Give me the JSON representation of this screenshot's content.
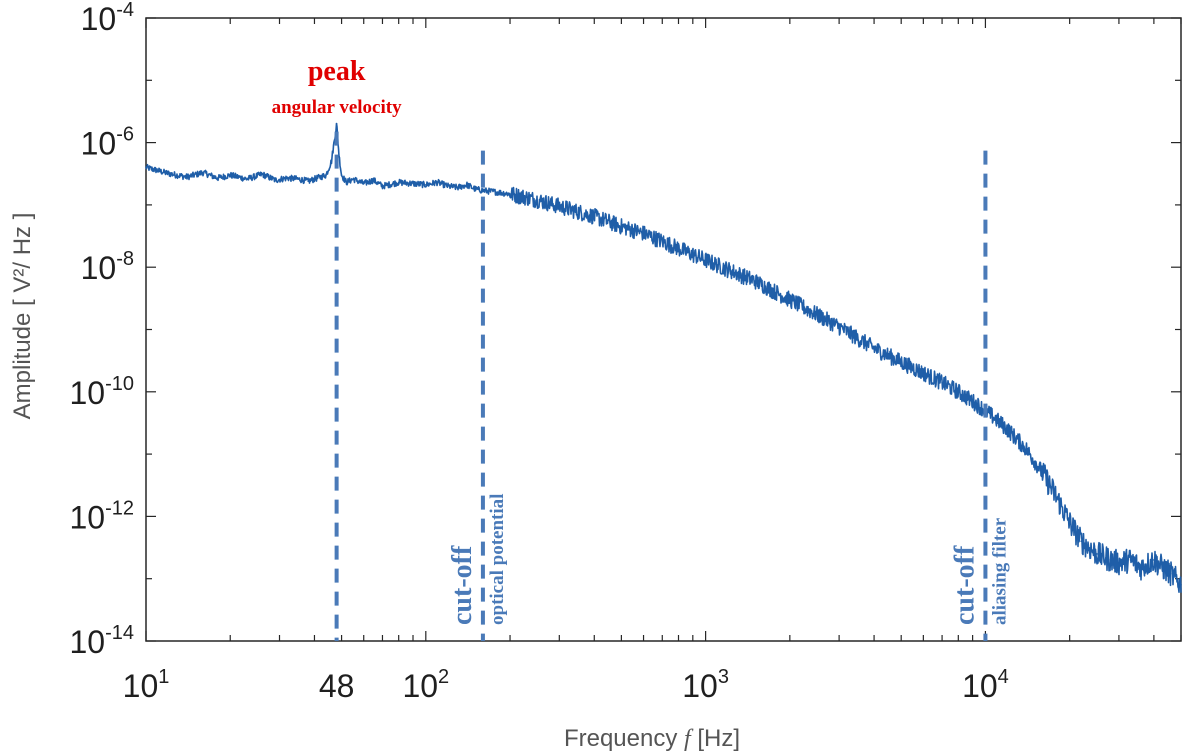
{
  "chart_data": {
    "type": "line",
    "x_scale": "log",
    "y_scale": "log",
    "xlim": [
      10,
      50000
    ],
    "ylim": [
      1e-14,
      0.0001
    ],
    "xlabel": "Frequency",
    "xlabel_var": "f",
    "xlabel_unit": "[Hz]",
    "ylabel": "Amplitude [ V²/ Hz ]",
    "x_tick_labels": [
      {
        "value": 10,
        "base": "10",
        "exp": "1"
      },
      {
        "value": 48,
        "base": "48",
        "exp": ""
      },
      {
        "value": 100,
        "base": "10",
        "exp": "2"
      },
      {
        "value": 1000,
        "base": "10",
        "exp": "3"
      },
      {
        "value": 10000,
        "base": "10",
        "exp": "4"
      }
    ],
    "y_tick_labels": [
      {
        "value": 0.0001,
        "base": "10",
        "exp": "-4"
      },
      {
        "value": 1e-06,
        "base": "10",
        "exp": "-6"
      },
      {
        "value": 1e-08,
        "base": "10",
        "exp": "-8"
      },
      {
        "value": 1e-10,
        "base": "10",
        "exp": "-10"
      },
      {
        "value": 1e-12,
        "base": "10",
        "exp": "-12"
      },
      {
        "value": 1e-14,
        "base": "10",
        "exp": "-14"
      }
    ],
    "grid": false,
    "series": [
      {
        "color": "#1f5ea8",
        "x": [
          10,
          12,
          14,
          16,
          18,
          20,
          23,
          26,
          29,
          32,
          35,
          38,
          41,
          44,
          46,
          47,
          48,
          49,
          50,
          52,
          55,
          60,
          65,
          70,
          80,
          90,
          100,
          110,
          120,
          130,
          140,
          150,
          160,
          180,
          200,
          250,
          300,
          400,
          500,
          600,
          700,
          800,
          1000,
          1500,
          2000,
          3000,
          4000,
          5000,
          6000,
          7000,
          8000,
          9000,
          10000,
          11000,
          12000,
          14000,
          16000,
          18000,
          20000,
          22000,
          25000,
          28000,
          30000,
          33000,
          36000,
          40000,
          43000,
          46000,
          50000
        ],
        "y": [
          4e-07,
          3.2e-07,
          2.8e-07,
          3.3e-07,
          2.7e-07,
          3e-07,
          2.6e-07,
          3.1e-07,
          2.5e-07,
          2.7e-07,
          2.6e-07,
          2.4e-07,
          2.7e-07,
          3e-07,
          5e-07,
          1e-06,
          2e-06,
          6e-07,
          3e-07,
          2.3e-07,
          2.6e-07,
          2.2e-07,
          2.5e-07,
          2e-07,
          2.3e-07,
          2.2e-07,
          2.1e-07,
          2.3e-07,
          2e-07,
          1.9e-07,
          2.1e-07,
          1.8e-07,
          1.7e-07,
          1.6e-07,
          1.5e-07,
          1.2e-07,
          9.5e-08,
          6.5e-08,
          4.5e-08,
          3.5e-08,
          2.6e-08,
          2e-08,
          1.3e-08,
          6e-09,
          3e-09,
          1.1e-09,
          5e-10,
          3e-10,
          2e-10,
          1.4e-10,
          1e-10,
          7e-11,
          5e-11,
          3.5e-11,
          2.5e-11,
          1.2e-11,
          5e-12,
          2e-12,
          8e-13,
          4e-13,
          2.5e-13,
          2e-13,
          1.8e-13,
          2e-13,
          1.5e-13,
          2e-13,
          1.5e-13,
          1.2e-13,
          8e-14
        ]
      }
    ],
    "annotations": [
      {
        "x": 48,
        "color": "#4a7ab8",
        "label_big": "",
        "label_small": ""
      },
      {
        "x": 160,
        "color": "#4a7ab8",
        "label_big": "cut-off",
        "label_small": "optical potential"
      },
      {
        "x": 10000,
        "color": "#4a7ab8",
        "label_big": "cut-off",
        "label_small": "aliasing filter"
      }
    ],
    "peak_label": {
      "x": 48,
      "title": "peak",
      "subtitle": "angular velocity",
      "color": "#e00000"
    }
  }
}
